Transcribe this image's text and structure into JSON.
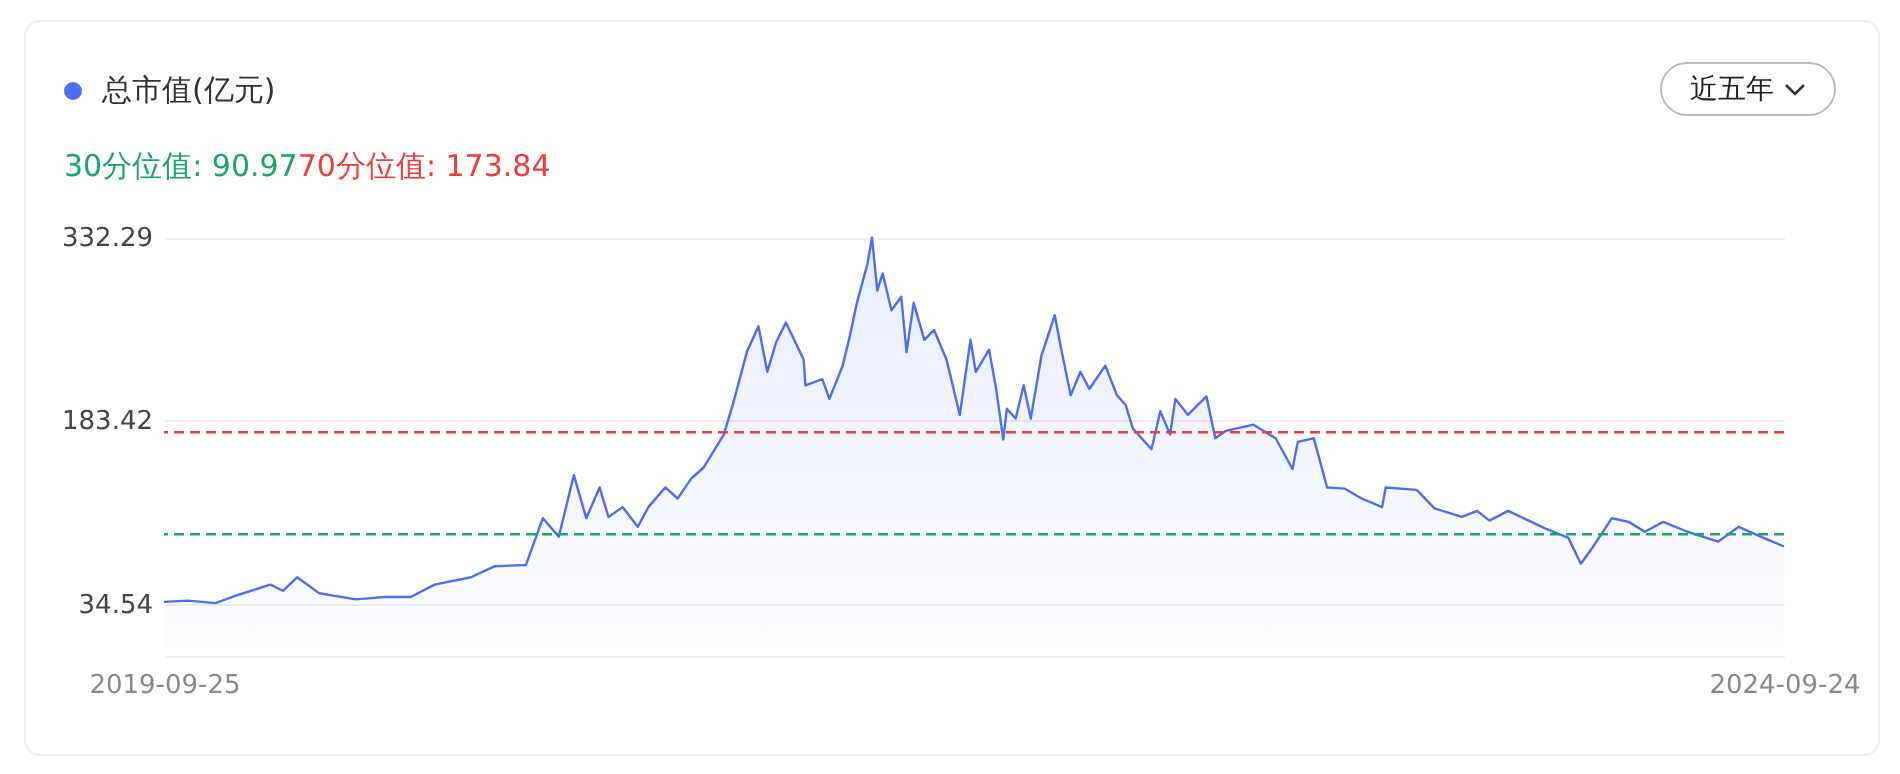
{
  "chart_data": {
    "type": "area",
    "x": [
      "2019-09-25",
      "2019-10-22",
      "2019-11-22",
      "2019-12-19",
      "2020-01-23",
      "2020-02-06",
      "2020-02-22",
      "2020-03-18",
      "2020-04-28",
      "2020-05-31",
      "2020-06-29",
      "2020-07-26",
      "2020-09-05",
      "2020-10-02",
      "2020-11-06",
      "2020-11-25",
      "2020-12-13",
      "2020-12-30",
      "2021-01-13",
      "2021-01-28",
      "2021-02-07",
      "2021-02-23",
      "2021-03-12",
      "2021-03-24",
      "2021-04-12",
      "2021-04-26",
      "2021-05-11",
      "2021-05-25",
      "2021-06-17",
      "2021-06-27",
      "2021-07-13",
      "2021-07-26",
      "2021-08-05",
      "2021-08-15",
      "2021-08-26",
      "2021-09-15",
      "2021-09-17",
      "2021-10-06",
      "2021-10-14",
      "2021-10-29",
      "2021-11-06",
      "2021-11-14",
      "2021-11-26",
      "2021-12-01",
      "2021-12-07",
      "2021-12-13",
      "2021-12-23",
      "2022-01-03",
      "2022-01-09",
      "2022-01-17",
      "2022-01-29",
      "2022-02-09",
      "2022-02-23",
      "2022-03-10",
      "2022-03-22",
      "2022-03-28",
      "2022-04-12",
      "2022-04-20",
      "2022-04-28",
      "2022-05-02",
      "2022-05-12",
      "2022-05-21",
      "2022-05-29",
      "2022-06-10",
      "2022-06-25",
      "2022-07-03",
      "2022-07-13",
      "2022-07-24",
      "2022-08-03",
      "2022-08-21",
      "2022-09-03",
      "2022-09-13",
      "2022-09-21",
      "2022-10-12",
      "2022-10-22",
      "2022-11-02",
      "2022-11-08",
      "2022-11-22",
      "2022-12-13",
      "2022-12-23",
      "2023-01-04",
      "2023-02-04",
      "2023-03-01",
      "2023-03-20",
      "2023-03-26",
      "2023-04-13",
      "2023-04-28",
      "2023-05-18",
      "2023-06-06",
      "2023-06-29",
      "2023-07-03",
      "2023-08-07",
      "2023-08-27",
      "2023-09-27",
      "2023-10-14",
      "2023-10-28",
      "2023-11-18",
      "2023-12-29",
      "2024-01-25",
      "2024-02-08",
      "2024-02-21",
      "2024-03-14",
      "2024-04-02",
      "2024-04-20",
      "2024-05-11",
      "2024-06-07",
      "2024-07-12",
      "2024-08-04",
      "2024-09-01",
      "2024-09-24"
    ],
    "series": [
      {
        "name": "总市值(亿元)",
        "color": "#4e6ef2",
        "values": [
          36,
          37,
          35,
          42,
          50,
          45,
          56,
          43,
          38,
          40,
          40,
          50,
          56,
          65,
          66,
          104,
          89,
          139,
          104,
          129,
          105,
          113,
          97,
          113,
          129,
          120,
          136,
          145,
          172,
          196,
          239,
          260,
          223,
          247,
          263,
          233,
          212,
          217,
          201,
          228,
          252,
          279,
          311,
          332,
          289,
          303,
          273,
          284,
          239,
          279,
          249,
          257,
          233,
          188,
          249,
          223,
          241,
          209,
          168,
          193,
          185,
          212,
          185,
          236,
          269,
          239,
          204,
          223,
          209,
          228,
          204,
          196,
          177,
          160,
          191,
          172,
          201,
          188,
          203,
          169,
          175,
          180,
          169,
          144,
          166,
          169,
          129,
          128,
          120,
          113,
          129,
          127,
          112,
          105,
          110,
          102,
          110,
          96,
          88,
          67,
          80,
          104,
          101,
          93,
          101,
          93,
          85,
          97,
          88,
          81
        ]
      }
    ],
    "xlim": [
      "2019-09-25",
      "2024-09-24"
    ],
    "xticks": [
      "2019-09-25",
      "2024-09-24"
    ],
    "ylim": [
      -8,
      335
    ],
    "yticks": [
      {
        "value": 34.54,
        "label": "34.54"
      },
      {
        "value": 183.42,
        "label": "183.42"
      },
      {
        "value": 332.29,
        "label": "332.29"
      }
    ],
    "grid": "y",
    "legend": "top left",
    "ref_lines": [
      {
        "axis": "y",
        "value": 90.97,
        "label": "30分位值: 90.97",
        "color": "#1aa563",
        "line_style": "dashed"
      },
      {
        "axis": "y",
        "value": 173.84,
        "label": "70分位值: 173.84",
        "color": "#ef3b3b",
        "line_style": "dashed"
      }
    ],
    "annotations": [
      "近五年"
    ]
  }
}
